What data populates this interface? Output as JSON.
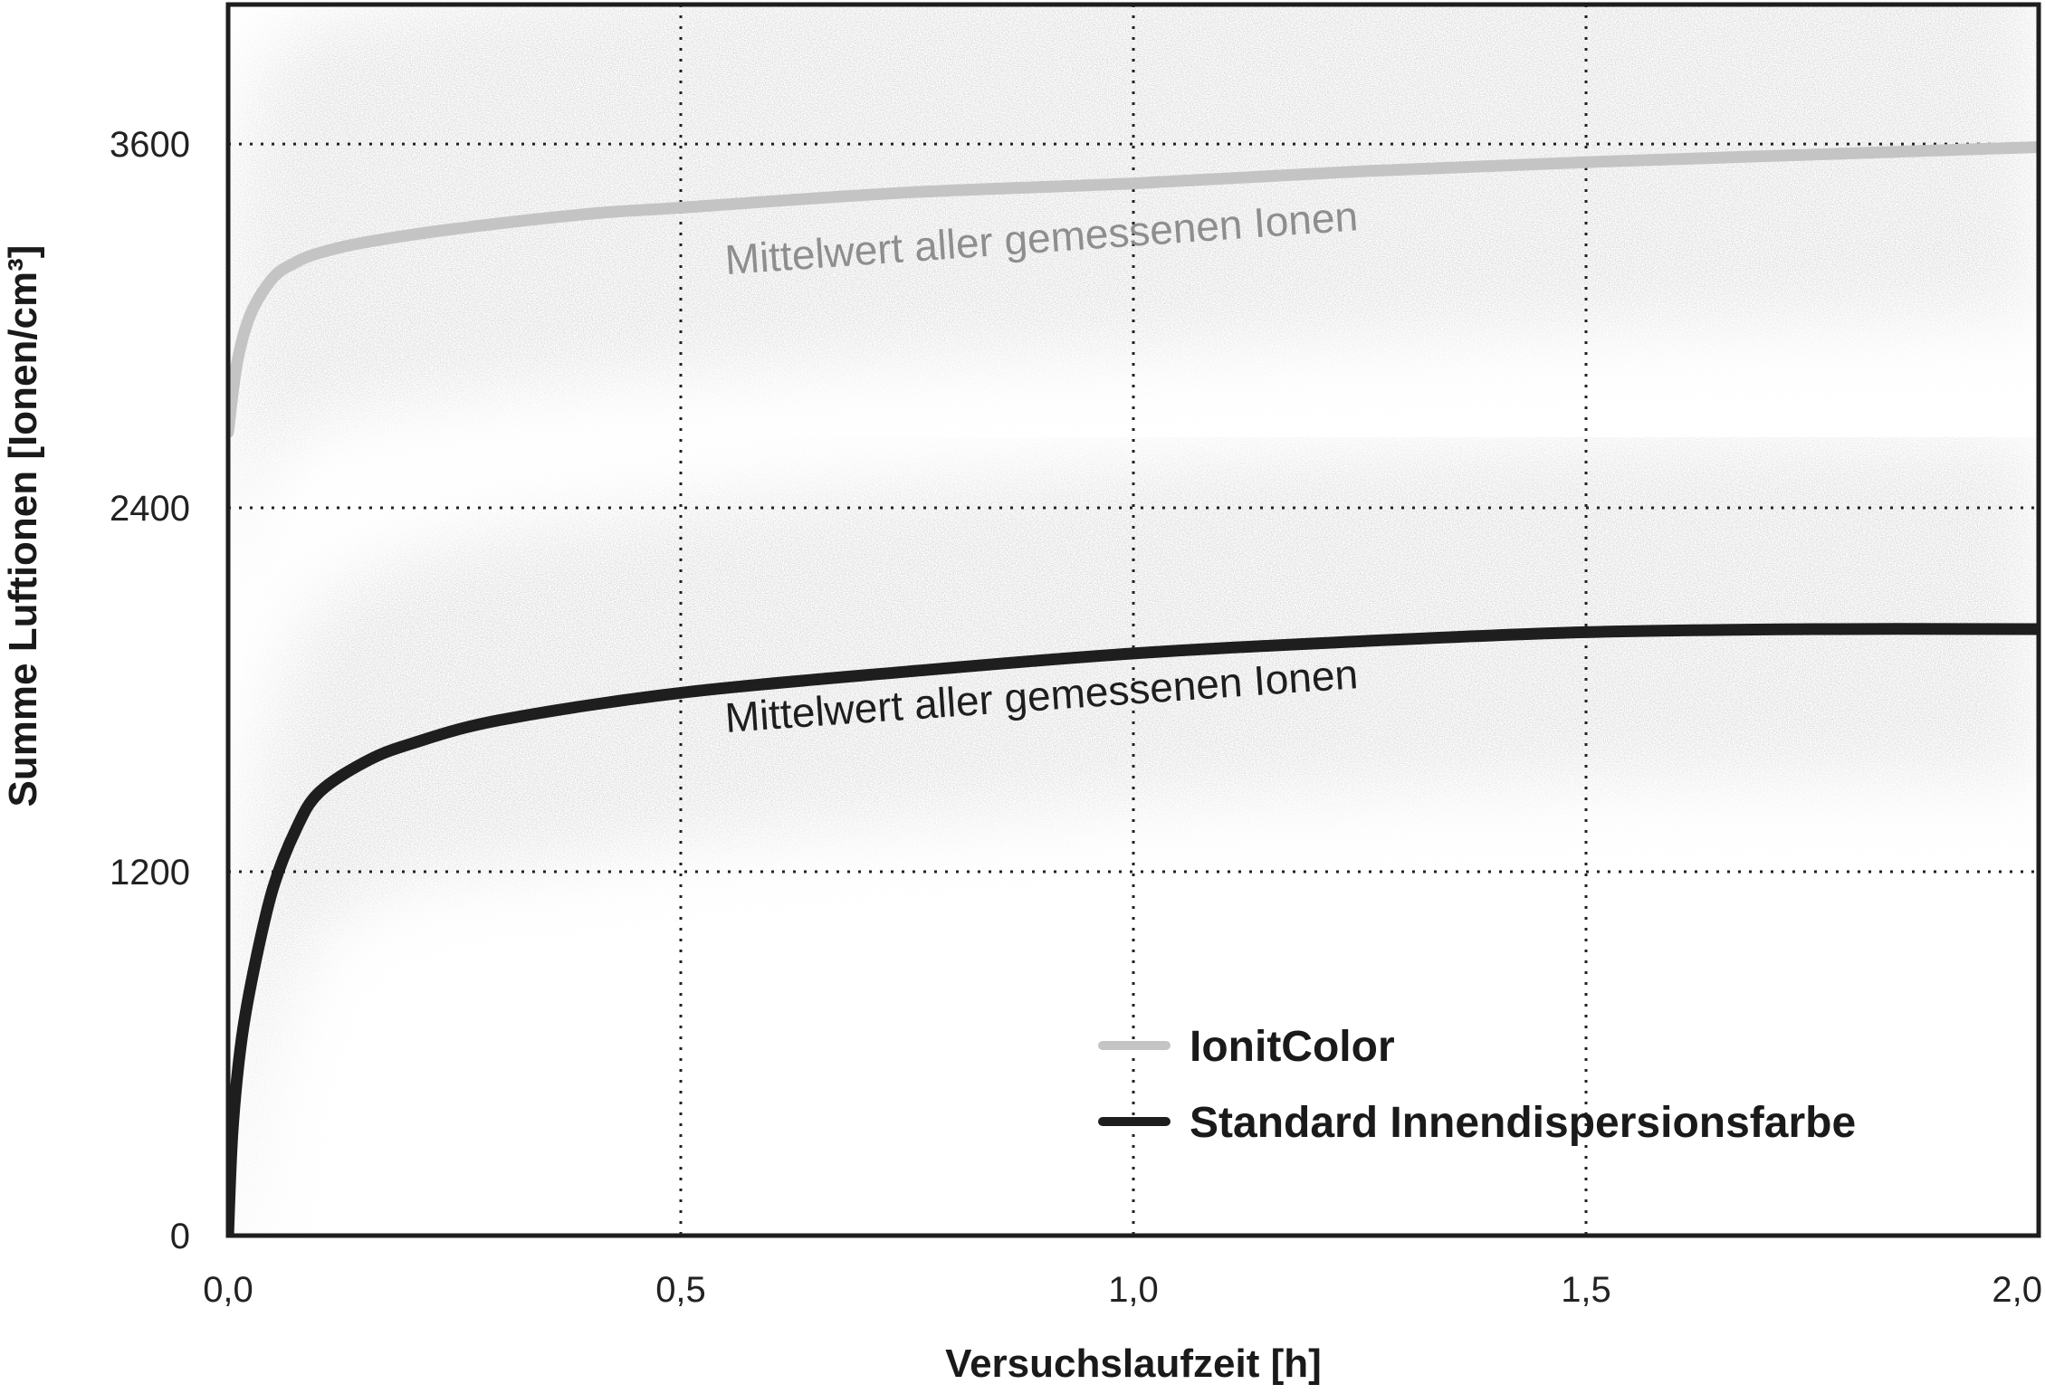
{
  "chart_data": {
    "type": "line",
    "title": "",
    "xlabel": "Versuchslaufzeit [h]",
    "ylabel": "Summe Luftionen [Ionen/cm³]",
    "xlim": [
      0,
      2.0
    ],
    "ylim": [
      0,
      4060
    ],
    "xticks": [
      0,
      0.5,
      1.0,
      1.5,
      2.0
    ],
    "xtick_labels": [
      "0,0",
      "0,5",
      "1,0",
      "1,5",
      "2,0"
    ],
    "yticks": [
      0,
      1200,
      2400,
      3600
    ],
    "ytick_labels": [
      "0",
      "1200",
      "2400",
      "3600"
    ],
    "grid": "dotted",
    "legend_position": "bottom-right",
    "series": [
      {
        "name": "IonitColor",
        "color": "#c4c4c4",
        "x": [
          0,
          0.01,
          0.025,
          0.05,
          0.075,
          0.1,
          0.15,
          0.25,
          0.4,
          0.5,
          0.75,
          1.0,
          1.25,
          1.5,
          1.75,
          2.0
        ],
        "y": [
          2650,
          2880,
          3040,
          3160,
          3210,
          3240,
          3275,
          3320,
          3370,
          3390,
          3440,
          3470,
          3510,
          3540,
          3565,
          3590
        ],
        "band": [
          2600,
          4000
        ]
      },
      {
        "name": "Standard Innendispersionsfarbe",
        "color": "#1e1e1e",
        "x": [
          0,
          0.005,
          0.015,
          0.03,
          0.05,
          0.075,
          0.1,
          0.15,
          0.2,
          0.3,
          0.5,
          0.75,
          1.0,
          1.25,
          1.5,
          1.75,
          2.0
        ],
        "y": [
          0,
          350,
          650,
          900,
          1150,
          1340,
          1460,
          1560,
          1620,
          1700,
          1790,
          1860,
          1920,
          1960,
          1990,
          2000,
          2000
        ],
        "band": [
          1500,
          2650
        ]
      }
    ],
    "annotations": [
      {
        "text": "Mittelwert aller gemessenen Ionen",
        "series": "IonitColor",
        "color": "#8e8e8e",
        "x": 0.55,
        "y": 3170,
        "angle": -4
      },
      {
        "text": "Mittelwert aller gemessenen Ionen",
        "series": "Standard Innendispersionsfarbe",
        "color": "#1e1e1e",
        "x": 0.55,
        "y": 1660,
        "angle": -4
      }
    ]
  }
}
